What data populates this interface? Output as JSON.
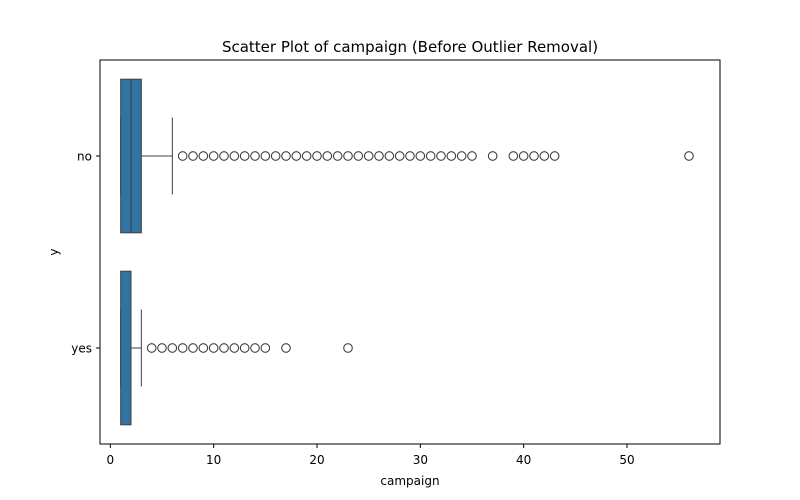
{
  "chart_data": {
    "type": "boxplot",
    "orientation": "horizontal",
    "title": "Scatter Plot of campaign (Before Outlier Removal)",
    "xlabel": "campaign",
    "ylabel": "y",
    "xlim": [
      -1,
      59
    ],
    "xticks": [
      0,
      10,
      20,
      30,
      40,
      50
    ],
    "categories": [
      "no",
      "yes"
    ],
    "box_color": "#3274a1",
    "line_color": "#3f3f3f",
    "series": [
      {
        "name": "no",
        "min": 1,
        "q1": 1,
        "median": 2,
        "q3": 3,
        "max": 6,
        "outliers": [
          7,
          8,
          9,
          10,
          11,
          12,
          13,
          14,
          15,
          16,
          17,
          18,
          19,
          20,
          21,
          22,
          23,
          24,
          25,
          26,
          27,
          28,
          29,
          30,
          31,
          32,
          33,
          34,
          35,
          37,
          39,
          40,
          41,
          42,
          43,
          56
        ]
      },
      {
        "name": "yes",
        "min": 1,
        "q1": 1,
        "median": 2,
        "q3": 2,
        "max": 3,
        "outliers": [
          4,
          5,
          6,
          7,
          8,
          9,
          10,
          11,
          12,
          13,
          14,
          15,
          17,
          23
        ]
      }
    ]
  }
}
